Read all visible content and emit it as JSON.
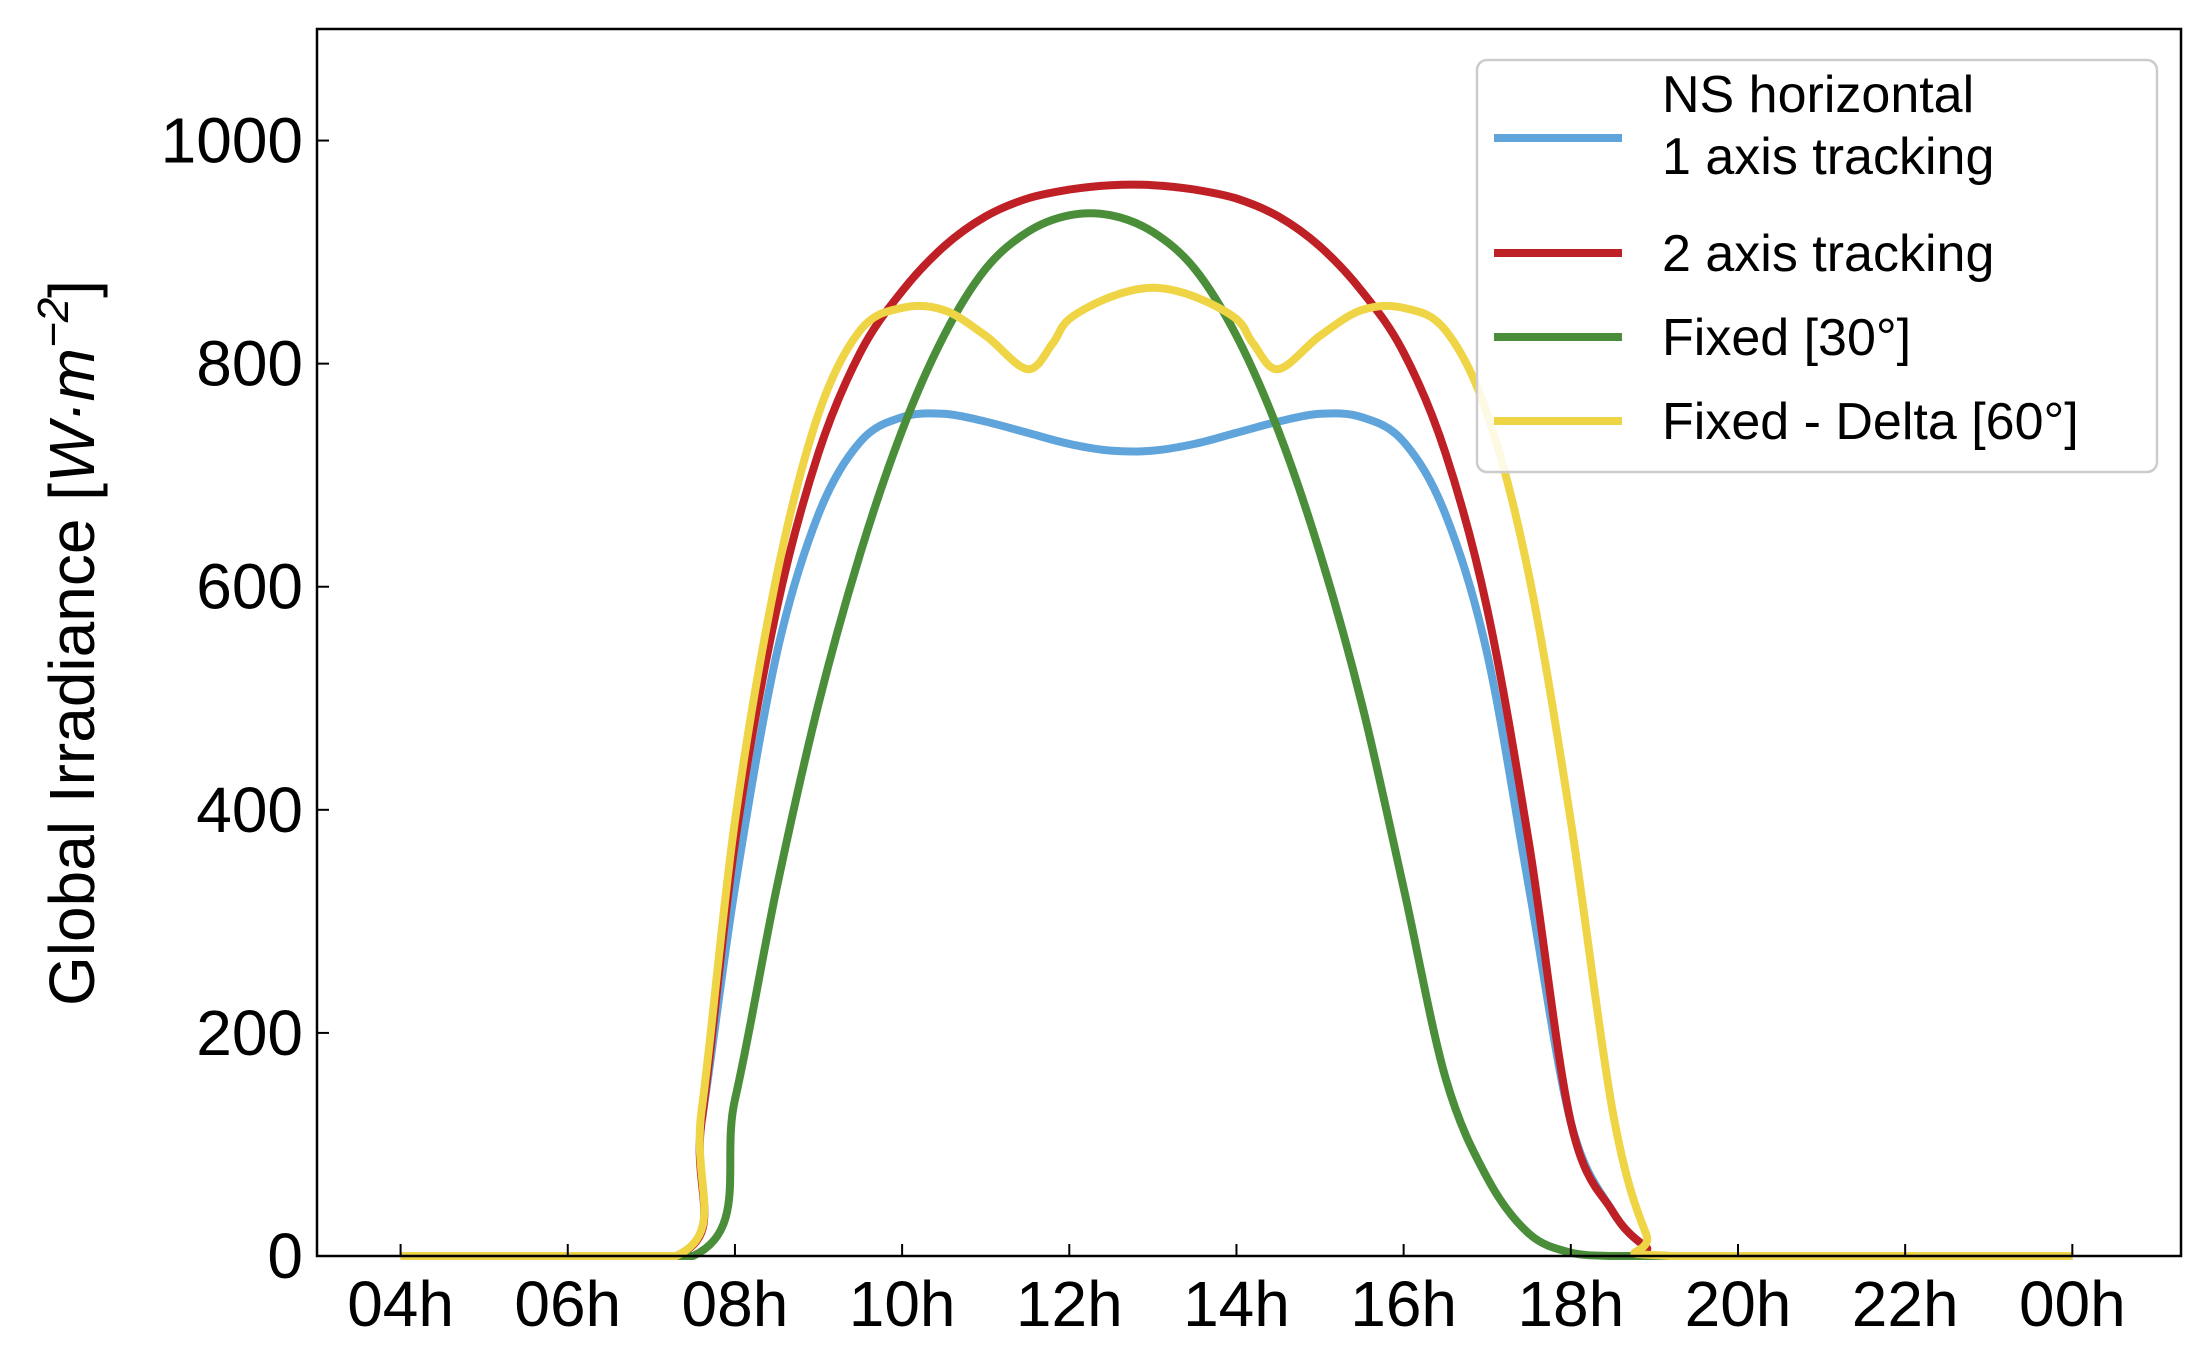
{
  "chart_data": {
    "type": "line",
    "title": "",
    "xlabel": "",
    "ylabel": "Global Irradiance [W·m⁻²]",
    "ylabel_parts": {
      "prefix": "Global Irradiance [",
      "math": "W·m",
      "sup": "−2",
      "suffix": "]"
    },
    "xlim": [
      3.0,
      25.3
    ],
    "ylim": [
      0,
      1100
    ],
    "xticks": [
      {
        "value": 4,
        "label": "04h"
      },
      {
        "value": 6,
        "label": "06h"
      },
      {
        "value": 8,
        "label": "08h"
      },
      {
        "value": 10,
        "label": "10h"
      },
      {
        "value": 12,
        "label": "12h"
      },
      {
        "value": 14,
        "label": "14h"
      },
      {
        "value": 16,
        "label": "16h"
      },
      {
        "value": 18,
        "label": "18h"
      },
      {
        "value": 20,
        "label": "20h"
      },
      {
        "value": 22,
        "label": "22h"
      },
      {
        "value": 24,
        "label": "00h"
      }
    ],
    "yticks": [
      {
        "value": 0,
        "label": "0"
      },
      {
        "value": 200,
        "label": "200"
      },
      {
        "value": 400,
        "label": "400"
      },
      {
        "value": 600,
        "label": "600"
      },
      {
        "value": 800,
        "label": "800"
      },
      {
        "value": 1000,
        "label": "1000"
      }
    ],
    "grid": false,
    "legend": {
      "position": "top-right"
    },
    "series": [
      {
        "name": "NS horizontal\n1 axis tracking",
        "color": "#5fa4db",
        "x": [
          4,
          7.3,
          7.6,
          8.0,
          8.5,
          9.0,
          9.5,
          10.0,
          10.5,
          11.0,
          11.5,
          12.0,
          12.5,
          13.0,
          13.5,
          14.0,
          14.5,
          15.0,
          15.5,
          16.0,
          16.5,
          17.0,
          17.5,
          18.0,
          18.5,
          18.9,
          19.2,
          24.0
        ],
        "y": [
          0,
          0,
          120,
          330,
          540,
          665,
          730,
          752,
          755,
          748,
          738,
          728,
          722,
          722,
          728,
          738,
          748,
          755,
          752,
          730,
          665,
          540,
          330,
          120,
          40,
          8,
          0,
          0
        ]
      },
      {
        "name": "2 axis tracking",
        "color": "#bf2026",
        "x": [
          4,
          7.3,
          7.6,
          8.0,
          8.5,
          9.0,
          9.5,
          10.0,
          10.5,
          11.0,
          11.5,
          12.0,
          12.5,
          13.0,
          13.5,
          14.0,
          14.5,
          15.0,
          15.5,
          16.0,
          16.5,
          17.0,
          17.5,
          18.0,
          18.5,
          18.9,
          19.2,
          24.0
        ],
        "y": [
          0,
          0,
          120,
          370,
          580,
          720,
          810,
          865,
          905,
          932,
          948,
          956,
          960,
          960,
          956,
          948,
          932,
          905,
          865,
          810,
          720,
          580,
          370,
          120,
          40,
          8,
          0,
          0
        ]
      },
      {
        "name": "Fixed [30°]",
        "color": "#4a8e3a",
        "x": [
          4,
          7.5,
          8.0,
          8.5,
          9.0,
          9.5,
          10.0,
          10.5,
          11.0,
          11.5,
          12.0,
          12.5,
          13.0,
          13.5,
          14.0,
          14.5,
          15.0,
          15.5,
          16.0,
          16.5,
          17.0,
          17.5,
          18.0,
          18.5,
          19.0,
          19.2,
          24.0
        ],
        "y": [
          0,
          0,
          140,
          330,
          495,
          630,
          740,
          825,
          885,
          918,
          933,
          933,
          918,
          885,
          825,
          740,
          630,
          495,
          330,
          160,
          70,
          20,
          3,
          0,
          0,
          0,
          0
        ]
      },
      {
        "name": "Fixed - Delta [60°]",
        "color": "#efd445",
        "x": [
          4,
          7.3,
          7.6,
          8.0,
          8.5,
          9.0,
          9.5,
          10.0,
          10.5,
          11.0,
          11.5,
          11.8,
          12.0,
          12.5,
          13.0,
          13.5,
          14.0,
          14.2,
          14.5,
          15.0,
          15.5,
          16.0,
          16.5,
          17.0,
          17.5,
          18.0,
          18.5,
          18.9,
          19.2,
          24.0
        ],
        "y": [
          0,
          0,
          130,
          390,
          610,
          755,
          830,
          850,
          848,
          825,
          795,
          818,
          840,
          860,
          868,
          860,
          840,
          818,
          795,
          825,
          848,
          850,
          830,
          755,
          610,
          390,
          130,
          20,
          0,
          0
        ]
      }
    ]
  }
}
